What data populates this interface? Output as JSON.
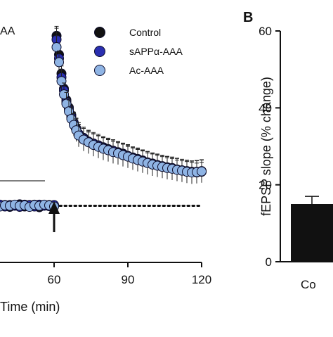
{
  "chart_data": [
    {
      "panel_label": "",
      "type": "scatter",
      "partial_title": "AA",
      "xlabel": "Time (min)",
      "xlim": [
        38,
        120
      ],
      "x_ticks": [
        60,
        90,
        120
      ],
      "x_tick_labels": [
        "60",
        "90",
        "120"
      ],
      "ylim": [
        -15,
        50
      ],
      "grid": false,
      "legend_position": "top-right",
      "baseline_dashed_y": 0,
      "annotation": "arrow at x = 60 (stimulus)",
      "series": [
        {
          "name": "Control",
          "color": "#111111",
          "x": [
            38,
            40,
            42,
            44,
            46,
            48,
            50,
            52,
            54,
            56,
            58,
            60,
            61,
            62,
            63,
            64,
            65,
            66,
            67,
            68,
            69,
            70,
            72,
            74,
            76,
            78,
            80,
            82,
            84,
            86,
            88,
            90,
            92,
            94,
            96,
            98,
            100,
            102,
            104,
            106,
            108,
            110,
            112,
            114,
            116,
            118,
            120
          ],
          "y": [
            0,
            0.2,
            -0.3,
            0.1,
            0.4,
            -0.2,
            0.2,
            0.3,
            -0.4,
            0.1,
            0.2,
            0,
            45,
            40,
            35,
            31,
            28,
            26,
            24,
            22,
            20.5,
            19,
            18,
            17,
            16.5,
            16,
            15.5,
            15,
            14.6,
            14.2,
            13.8,
            13.2,
            12.8,
            12.4,
            12,
            11.5,
            11.2,
            10.8,
            10.5,
            10.2,
            10,
            9.6,
            9.4,
            9.2,
            9,
            8.8,
            9
          ],
          "error": [
            0.8,
            0.8,
            0.8,
            0.8,
            0.8,
            0.8,
            0.8,
            0.8,
            0.8,
            0.8,
            0.8,
            0.8,
            2.5,
            2.5,
            2.5,
            2.5,
            2.5,
            2.5,
            2.5,
            2.5,
            2.5,
            2.5,
            2.5,
            2.5,
            2.5,
            2.5,
            2.5,
            2.5,
            2.5,
            2.5,
            2.5,
            2.5,
            2.5,
            2.5,
            2.5,
            2.5,
            2.5,
            2.5,
            2.5,
            2.5,
            2.5,
            2.5,
            2.5,
            2.5,
            2.5,
            2.5,
            2.5
          ]
        },
        {
          "name": "sAPPα-AAA",
          "color": "#2a2fb0",
          "x": [
            38,
            40,
            42,
            44,
            46,
            48,
            50,
            52,
            54,
            56,
            58,
            60,
            61,
            62,
            63,
            64,
            65,
            66,
            67,
            68,
            69,
            70,
            72,
            74,
            76,
            78,
            80,
            82,
            84,
            86,
            88,
            90,
            92,
            94,
            96,
            98,
            100,
            102,
            104,
            106,
            108,
            110,
            112,
            114,
            116,
            118,
            120
          ],
          "y": [
            0.3,
            -0.2,
            0.2,
            0,
            -0.3,
            0.3,
            0.1,
            -0.2,
            0.3,
            0,
            -0.1,
            0.2,
            44,
            39,
            34,
            30.5,
            27.5,
            25.5,
            23.5,
            21.8,
            20.2,
            19,
            17.8,
            17,
            16.4,
            15.9,
            15.3,
            14.9,
            14.5,
            14,
            13.6,
            13.2,
            12.6,
            12.3,
            11.8,
            11.4,
            11,
            10.7,
            10.4,
            10.1,
            9.9,
            9.6,
            9.3,
            9.1,
            8.9,
            9,
            9.2
          ],
          "error": [
            0.8,
            0.8,
            0.8,
            0.8,
            0.8,
            0.8,
            0.8,
            0.8,
            0.8,
            0.8,
            0.8,
            0.8,
            3,
            3,
            3,
            3,
            3,
            3,
            3,
            3,
            3,
            3,
            3,
            3,
            3,
            3,
            3,
            3,
            3,
            3,
            3,
            3,
            3,
            3,
            3,
            3,
            3,
            3,
            3,
            3,
            3,
            3,
            3,
            3,
            3,
            3,
            3
          ]
        },
        {
          "name": "Ac-AAA",
          "color": "#8fb4e4",
          "x": [
            38,
            40,
            42,
            44,
            46,
            48,
            50,
            52,
            54,
            56,
            58,
            60,
            61,
            62,
            63,
            64,
            65,
            66,
            67,
            68,
            69,
            70,
            72,
            74,
            76,
            78,
            80,
            82,
            84,
            86,
            88,
            90,
            92,
            94,
            96,
            98,
            100,
            102,
            104,
            106,
            108,
            110,
            112,
            114,
            116,
            118,
            120
          ],
          "y": [
            -0.2,
            0.1,
            0,
            0.3,
            0,
            0.1,
            -0.3,
            0.2,
            0,
            0.3,
            0.1,
            -0.2,
            42,
            38,
            33,
            29.5,
            27,
            25,
            23,
            21.4,
            20,
            18.6,
            17.5,
            16.8,
            16.1,
            15.6,
            15.1,
            14.7,
            14.2,
            13.9,
            13.4,
            13,
            12.5,
            12.1,
            11.7,
            11.3,
            10.9,
            10.6,
            10.3,
            10,
            9.8,
            9.5,
            9.3,
            9,
            8.8,
            8.9,
            9.1
          ],
          "error": [
            0.8,
            0.8,
            0.8,
            0.8,
            0.8,
            0.8,
            0.8,
            0.8,
            0.8,
            0.8,
            0.8,
            0.8,
            3,
            3,
            3,
            3,
            3,
            3,
            3,
            3,
            3,
            3,
            3,
            3,
            3,
            3,
            3,
            3,
            3,
            3,
            3,
            3,
            3,
            3,
            3,
            3,
            3,
            3,
            3,
            3,
            3,
            3,
            3,
            3,
            3,
            3,
            3
          ]
        }
      ]
    },
    {
      "panel_label": "B",
      "type": "bar",
      "ylabel": "fEPSP slope (% change)",
      "ylim": [
        0,
        60
      ],
      "y_ticks": [
        0,
        20,
        40,
        60
      ],
      "y_tick_labels": [
        "0",
        "20",
        "40",
        "60"
      ],
      "grid": false,
      "categories": [
        "Co"
      ],
      "values": [
        15
      ],
      "errors": [
        2
      ],
      "bar_color": "#111111"
    }
  ]
}
